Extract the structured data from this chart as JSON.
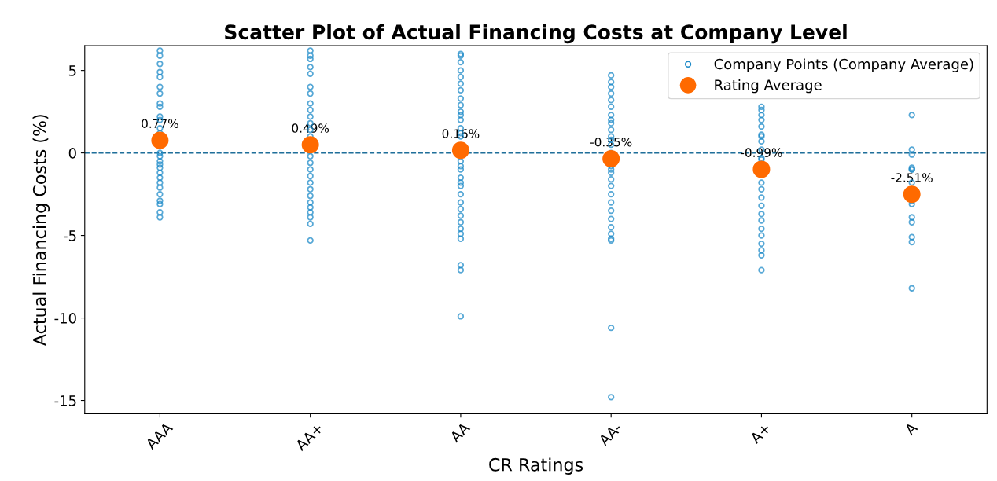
{
  "chart_data": {
    "type": "scatter",
    "title": "Scatter Plot of Actual Financing Costs at Company Level",
    "xlabel": "CR Ratings",
    "ylabel": "Actual Financing Costs (%)",
    "categories": [
      "AAA",
      "AA+",
      "AA",
      "AA-",
      "A+",
      "A"
    ],
    "ylim": [
      -15.8,
      6.5
    ],
    "yticks": [
      {
        "value": 5,
        "label": "5"
      },
      {
        "value": 0,
        "label": "0"
      },
      {
        "value": -5,
        "label": "-5"
      },
      {
        "value": -10,
        "label": "-10"
      },
      {
        "value": -15,
        "label": "-15"
      }
    ],
    "ref_lines": [
      {
        "axis": "y",
        "value": 0,
        "color": "#1f6f9a",
        "line_style": "dashed"
      }
    ],
    "legend": "top right",
    "marker": "circle",
    "series": [
      {
        "name": "Company Points (Company Average)",
        "color": "#1f8bc8",
        "x": [
          "AAA",
          "AAA",
          "AAA",
          "AAA",
          "AAA",
          "AAA",
          "AAA",
          "AAA",
          "AAA",
          "AAA",
          "AAA",
          "AAA",
          "AAA",
          "AAA",
          "AAA",
          "AAA",
          "AAA",
          "AAA",
          "AAA",
          "AAA",
          "AAA",
          "AAA",
          "AAA",
          "AAA",
          "AAA",
          "AAA",
          "AAA",
          "AAA",
          "AA+",
          "AA+",
          "AA+",
          "AA+",
          "AA+",
          "AA+",
          "AA+",
          "AA+",
          "AA+",
          "AA+",
          "AA+",
          "AA+",
          "AA+",
          "AA+",
          "AA+",
          "AA+",
          "AA+",
          "AA+",
          "AA+",
          "AA+",
          "AA+",
          "AA+",
          "AA+",
          "AA+",
          "AA+",
          "AA+",
          "AA",
          "AA",
          "AA",
          "AA",
          "AA",
          "AA",
          "AA",
          "AA",
          "AA",
          "AA",
          "AA",
          "AA",
          "AA",
          "AA",
          "AA",
          "AA",
          "AA",
          "AA",
          "AA",
          "AA",
          "AA",
          "AA",
          "AA",
          "AA",
          "AA",
          "AA",
          "AA",
          "AA",
          "AA",
          "AA",
          "AA",
          "AA",
          "AA-",
          "AA-",
          "AA-",
          "AA-",
          "AA-",
          "AA-",
          "AA-",
          "AA-",
          "AA-",
          "AA-",
          "AA-",
          "AA-",
          "AA-",
          "AA-",
          "AA-",
          "AA-",
          "AA-",
          "AA-",
          "AA-",
          "AA-",
          "AA-",
          "AA-",
          "AA-",
          "AA-",
          "AA-",
          "AA-",
          "AA-",
          "AA-",
          "AA-",
          "A+",
          "A+",
          "A+",
          "A+",
          "A+",
          "A+",
          "A+",
          "A+",
          "A+",
          "A+",
          "A+",
          "A+",
          "A+",
          "A+",
          "A+",
          "A+",
          "A+",
          "A+",
          "A+",
          "A+",
          "A+",
          "A+",
          "A+",
          "A",
          "A",
          "A",
          "A",
          "A",
          "A",
          "A",
          "A",
          "A",
          "A",
          "A",
          "A",
          "A",
          "A"
        ],
        "values": [
          6.2,
          5.9,
          5.4,
          4.9,
          4.6,
          4.0,
          3.6,
          3.0,
          2.8,
          2.2,
          2.0,
          1.5,
          1.2,
          0.4,
          0.0,
          -0.2,
          -0.5,
          -0.9,
          -1.2,
          -1.5,
          -1.8,
          -2.1,
          -2.5,
          -2.9,
          -3.1,
          -3.6,
          -3.9,
          -0.7,
          6.2,
          5.9,
          5.7,
          5.2,
          4.8,
          4.0,
          3.6,
          3.0,
          2.6,
          2.2,
          1.8,
          1.4,
          1.0,
          -0.2,
          -0.6,
          -1.0,
          -1.4,
          -1.8,
          -2.2,
          -2.6,
          -3.0,
          -3.3,
          -3.6,
          -3.9,
          -4.3,
          -5.3,
          6.0,
          5.9,
          5.5,
          5.0,
          4.6,
          4.2,
          3.8,
          3.3,
          2.9,
          2.5,
          2.0,
          1.5,
          1.0,
          -0.5,
          -1.0,
          -1.5,
          -2.0,
          -2.5,
          -3.0,
          -3.4,
          -3.8,
          -4.2,
          -4.6,
          -4.9,
          -5.2,
          -6.8,
          -7.1,
          -9.9,
          1.2,
          -0.8,
          -1.8,
          2.3,
          4.7,
          4.3,
          4.0,
          3.6,
          3.2,
          2.8,
          2.3,
          1.8,
          1.4,
          1.0,
          0.5,
          0.0,
          -0.8,
          -1.2,
          -1.6,
          -2.0,
          -2.5,
          -3.0,
          -3.5,
          -4.0,
          -4.5,
          -4.9,
          -5.2,
          -5.3,
          -10.6,
          -14.8,
          0.8,
          -1.0,
          2.0,
          2.8,
          2.6,
          2.3,
          2.0,
          1.6,
          1.1,
          0.7,
          0.2,
          -0.3,
          -1.8,
          -2.2,
          -2.7,
          -3.2,
          -3.7,
          -4.1,
          -4.6,
          -5.0,
          -5.5,
          -5.9,
          -6.2,
          -7.1,
          1.0,
          -0.4,
          2.3,
          0.2,
          -0.1,
          -0.9,
          -1.0,
          -1.8,
          -2.9,
          -3.1,
          -3.9,
          -4.2,
          -5.1,
          -5.4,
          -8.2,
          -1.0
        ]
      },
      {
        "name": "Rating Average",
        "color": "#ff6a00",
        "x": [
          "AAA",
          "AA+",
          "AA",
          "AA-",
          "A+",
          "A"
        ],
        "values": [
          0.77,
          0.49,
          0.16,
          -0.35,
          -0.99,
          -2.51
        ],
        "value_labels": [
          "0.77%",
          "0.49%",
          "0.16%",
          "-0.35%",
          "-0.99%",
          "-2.51%"
        ]
      }
    ]
  }
}
